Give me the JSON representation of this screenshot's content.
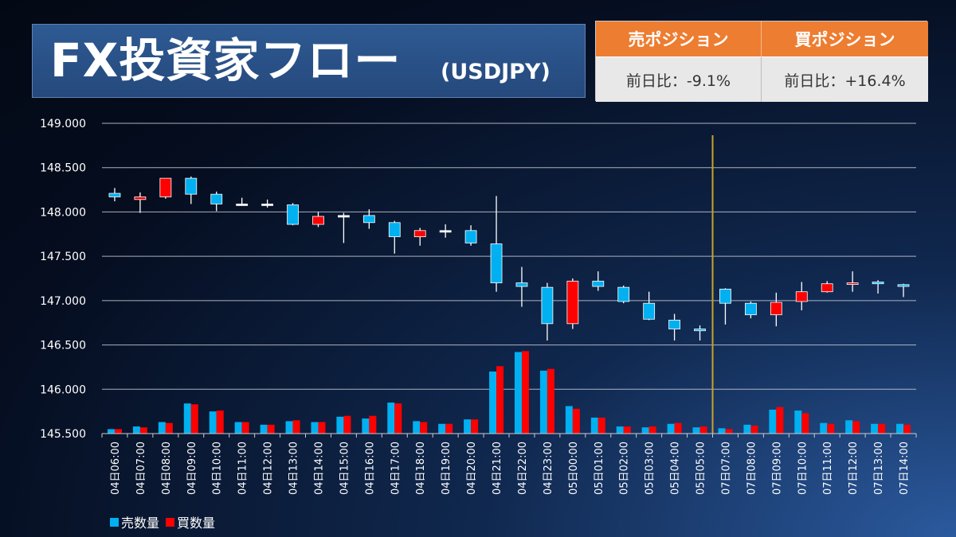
{
  "header": {
    "title": "FX投資家フロー",
    "pair": "(USDJPY)"
  },
  "positions": {
    "sell_label": "売ポジション",
    "buy_label": "買ポジション",
    "sell_change": "前日比：-9.1%",
    "buy_change": "前日比：+16.4%"
  },
  "colors": {
    "sell": "#00b0f0",
    "buy": "#ff0000",
    "doji": "#ffffff",
    "divider": "#c9a227",
    "header_accent": "#ed7d31"
  },
  "legend": {
    "sell": "売数量",
    "buy": "買数量"
  },
  "chart_data": {
    "type": "candlestick+bar",
    "ylim": [
      145.5,
      149.0
    ],
    "yticks": [
      "149.000",
      "148.500",
      "148.000",
      "147.500",
      "147.000",
      "146.500",
      "146.000",
      "145.500"
    ],
    "grid": true,
    "divider_after_index": 23,
    "categories": [
      "04日06:00",
      "04日07:00",
      "04日08:00",
      "04日09:00",
      "04日10:00",
      "04日11:00",
      "04日12:00",
      "04日13:00",
      "04日14:00",
      "04日15:00",
      "04日16:00",
      "04日17:00",
      "04日18:00",
      "04日19:00",
      "04日20:00",
      "04日21:00",
      "04日22:00",
      "04日23:00",
      "05日00:00",
      "05日01:00",
      "05日02:00",
      "05日03:00",
      "05日04:00",
      "05日05:00",
      "07日07:00",
      "07日08:00",
      "07日09:00",
      "07日10:00",
      "07日11:00",
      "07日12:00",
      "07日13:00",
      "07日14:00"
    ],
    "candles": [
      {
        "o": 148.17,
        "c": 148.21,
        "h": 148.27,
        "l": 148.12,
        "color": "sell"
      },
      {
        "o": 148.14,
        "c": 148.17,
        "h": 148.22,
        "l": 147.99,
        "color": "buy"
      },
      {
        "o": 148.17,
        "c": 148.38,
        "h": 148.38,
        "l": 148.15,
        "color": "buy"
      },
      {
        "o": 148.38,
        "c": 148.2,
        "h": 148.4,
        "l": 148.09,
        "color": "sell"
      },
      {
        "o": 148.2,
        "c": 148.09,
        "h": 148.23,
        "l": 148.01,
        "color": "sell"
      },
      {
        "o": 148.09,
        "c": 148.09,
        "h": 148.16,
        "l": 148.07,
        "color": "doji"
      },
      {
        "o": 148.09,
        "c": 148.09,
        "h": 148.14,
        "l": 148.05,
        "color": "doji"
      },
      {
        "o": 148.08,
        "c": 147.86,
        "h": 148.1,
        "l": 147.85,
        "color": "sell"
      },
      {
        "o": 147.86,
        "c": 147.95,
        "h": 148.0,
        "l": 147.83,
        "color": "buy"
      },
      {
        "o": 147.96,
        "c": 147.96,
        "h": 147.99,
        "l": 147.65,
        "color": "doji"
      },
      {
        "o": 147.96,
        "c": 147.88,
        "h": 148.03,
        "l": 147.81,
        "color": "sell"
      },
      {
        "o": 147.88,
        "c": 147.72,
        "h": 147.9,
        "l": 147.53,
        "color": "sell"
      },
      {
        "o": 147.72,
        "c": 147.79,
        "h": 147.82,
        "l": 147.62,
        "color": "buy"
      },
      {
        "o": 147.79,
        "c": 147.79,
        "h": 147.86,
        "l": 147.71,
        "color": "doji"
      },
      {
        "o": 147.79,
        "c": 147.65,
        "h": 147.85,
        "l": 147.62,
        "color": "sell"
      },
      {
        "o": 147.64,
        "c": 147.2,
        "h": 148.18,
        "l": 147.1,
        "color": "sell"
      },
      {
        "o": 147.2,
        "c": 147.16,
        "h": 147.38,
        "l": 146.93,
        "color": "sell"
      },
      {
        "o": 147.15,
        "c": 146.74,
        "h": 147.2,
        "l": 146.55,
        "color": "sell"
      },
      {
        "o": 146.74,
        "c": 147.22,
        "h": 147.25,
        "l": 146.68,
        "color": "buy"
      },
      {
        "o": 147.22,
        "c": 147.16,
        "h": 147.33,
        "l": 147.11,
        "color": "sell"
      },
      {
        "o": 147.15,
        "c": 146.99,
        "h": 147.17,
        "l": 146.97,
        "color": "sell"
      },
      {
        "o": 146.97,
        "c": 146.79,
        "h": 147.1,
        "l": 146.78,
        "color": "sell"
      },
      {
        "o": 146.78,
        "c": 146.68,
        "h": 146.85,
        "l": 146.55,
        "color": "sell"
      },
      {
        "o": 146.68,
        "c": 146.66,
        "h": 146.72,
        "l": 146.55,
        "color": "sell"
      },
      {
        "o": 147.13,
        "c": 146.97,
        "h": 147.14,
        "l": 146.73,
        "color": "sell"
      },
      {
        "o": 146.97,
        "c": 146.84,
        "h": 146.99,
        "l": 146.8,
        "color": "sell"
      },
      {
        "o": 146.84,
        "c": 146.98,
        "h": 147.09,
        "l": 146.71,
        "color": "buy"
      },
      {
        "o": 146.99,
        "c": 147.1,
        "h": 147.21,
        "l": 146.89,
        "color": "buy"
      },
      {
        "o": 147.1,
        "c": 147.19,
        "h": 147.22,
        "l": 147.09,
        "color": "buy"
      },
      {
        "o": 147.2,
        "c": 147.2,
        "h": 147.33,
        "l": 147.1,
        "color": "buy"
      },
      {
        "o": 147.21,
        "c": 147.19,
        "h": 147.23,
        "l": 147.08,
        "color": "sell"
      },
      {
        "o": 147.18,
        "c": 147.16,
        "h": 147.19,
        "l": 147.04,
        "color": "sell"
      }
    ],
    "series": [
      {
        "name": "売数量",
        "values": [
          145.55,
          145.58,
          145.63,
          145.84,
          145.75,
          145.63,
          145.6,
          145.64,
          145.63,
          145.69,
          145.67,
          145.85,
          145.64,
          145.61,
          145.66,
          146.2,
          146.42,
          146.21,
          145.81,
          145.68,
          145.58,
          145.57,
          145.61,
          145.57,
          145.56,
          145.6,
          145.77,
          145.76,
          145.62,
          145.65,
          145.61,
          145.61
        ]
      },
      {
        "name": "買数量",
        "values": [
          145.55,
          145.57,
          145.62,
          145.83,
          145.76,
          145.63,
          145.6,
          145.65,
          145.63,
          145.7,
          145.7,
          145.84,
          145.63,
          145.61,
          145.66,
          146.26,
          146.43,
          146.23,
          145.78,
          145.68,
          145.58,
          145.58,
          145.62,
          145.58,
          145.55,
          145.59,
          145.8,
          145.73,
          145.61,
          145.64,
          145.61,
          145.6
        ]
      }
    ]
  }
}
